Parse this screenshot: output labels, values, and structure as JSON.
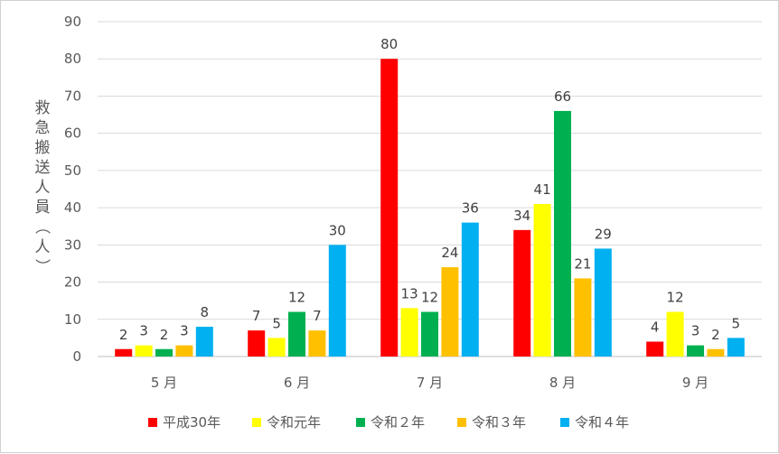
{
  "chart_data": {
    "type": "bar",
    "title": "",
    "xlabel": "",
    "ylabel": "救急搬送人員（人）",
    "ylim": [
      0,
      90
    ],
    "yticks": [
      0,
      10,
      20,
      30,
      40,
      50,
      60,
      70,
      80,
      90
    ],
    "grid": true,
    "legend_position": "bottom",
    "categories": [
      "5 月",
      "6 月",
      "7 月",
      "8 月",
      "9 月"
    ],
    "series": [
      {
        "name": "平成30年",
        "color": "#ff0000",
        "values": [
          2,
          7,
          80,
          34,
          4
        ]
      },
      {
        "name": "令和元年",
        "color": "#ffff00",
        "values": [
          3,
          5,
          13,
          41,
          12
        ]
      },
      {
        "name": "令和２年",
        "color": "#00b050",
        "values": [
          2,
          12,
          12,
          66,
          3
        ]
      },
      {
        "name": "令和３年",
        "color": "#ffc000",
        "values": [
          3,
          7,
          24,
          21,
          2
        ]
      },
      {
        "name": "令和４年",
        "color": "#00b0f0",
        "values": [
          8,
          30,
          36,
          29,
          5
        ]
      }
    ]
  }
}
